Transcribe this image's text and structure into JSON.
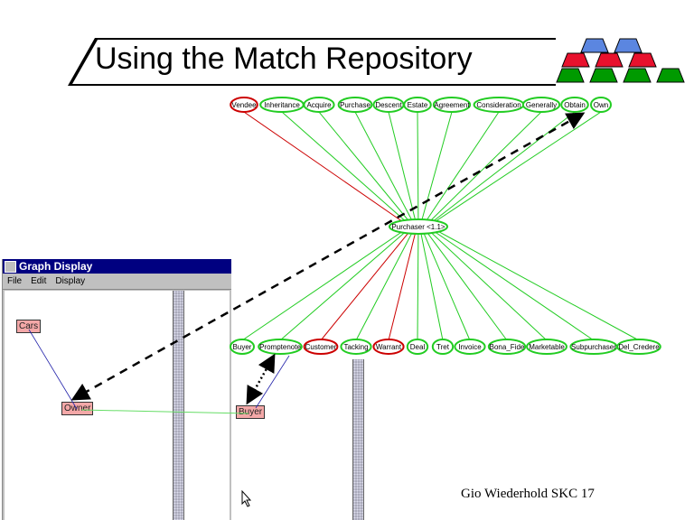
{
  "slide": {
    "title": "Using the Match Repository",
    "footer": "Gio Wiederhold  SKC 17"
  },
  "logo": {
    "rows": [
      {
        "color": "#5b86e0",
        "count": 2
      },
      {
        "color": "#e8112d",
        "count": 3
      },
      {
        "color": "#009a00",
        "count": 4
      }
    ]
  },
  "graph_window": {
    "title": "Graph Display",
    "menu": [
      "File",
      "Edit",
      "Display"
    ],
    "nodes": {
      "cars": "Cars",
      "owner": "Owner",
      "buyer": "Buyer"
    }
  },
  "ontology": {
    "center": "Purchaser <1.1>",
    "top_nodes": [
      {
        "label": "Vendee",
        "color": "#cc0000"
      },
      {
        "label": "Inheritance",
        "color": "#22cc22"
      },
      {
        "label": "Acquire",
        "color": "#22cc22"
      },
      {
        "label": "Purchase",
        "color": "#22cc22"
      },
      {
        "label": "Descent",
        "color": "#22cc22"
      },
      {
        "label": "Estate",
        "color": "#22cc22"
      },
      {
        "label": "Agreement",
        "color": "#22cc22"
      },
      {
        "label": "Consideration",
        "color": "#22cc22"
      },
      {
        "label": "Generally",
        "color": "#22cc22"
      },
      {
        "label": "Obtain",
        "color": "#22cc22"
      },
      {
        "label": "Own",
        "color": "#22cc22"
      }
    ],
    "bottom_nodes": [
      {
        "label": "Buyer",
        "color": "#22cc22"
      },
      {
        "label": "Promptenote",
        "color": "#22cc22"
      },
      {
        "label": "Customer",
        "color": "#cc0000"
      },
      {
        "label": "Tacking",
        "color": "#22cc22"
      },
      {
        "label": "Warrant",
        "color": "#cc0000"
      },
      {
        "label": "Deal",
        "color": "#22cc22"
      },
      {
        "label": "Tret",
        "color": "#22cc22"
      },
      {
        "label": "Invoice",
        "color": "#22cc22"
      },
      {
        "label": "Bona_Fide",
        "color": "#22cc22"
      },
      {
        "label": "Marketable",
        "color": "#22cc22"
      },
      {
        "label": "Subpurchaser",
        "color": "#22cc22"
      },
      {
        "label": "Del_Credere",
        "color": "#22cc22"
      }
    ]
  }
}
